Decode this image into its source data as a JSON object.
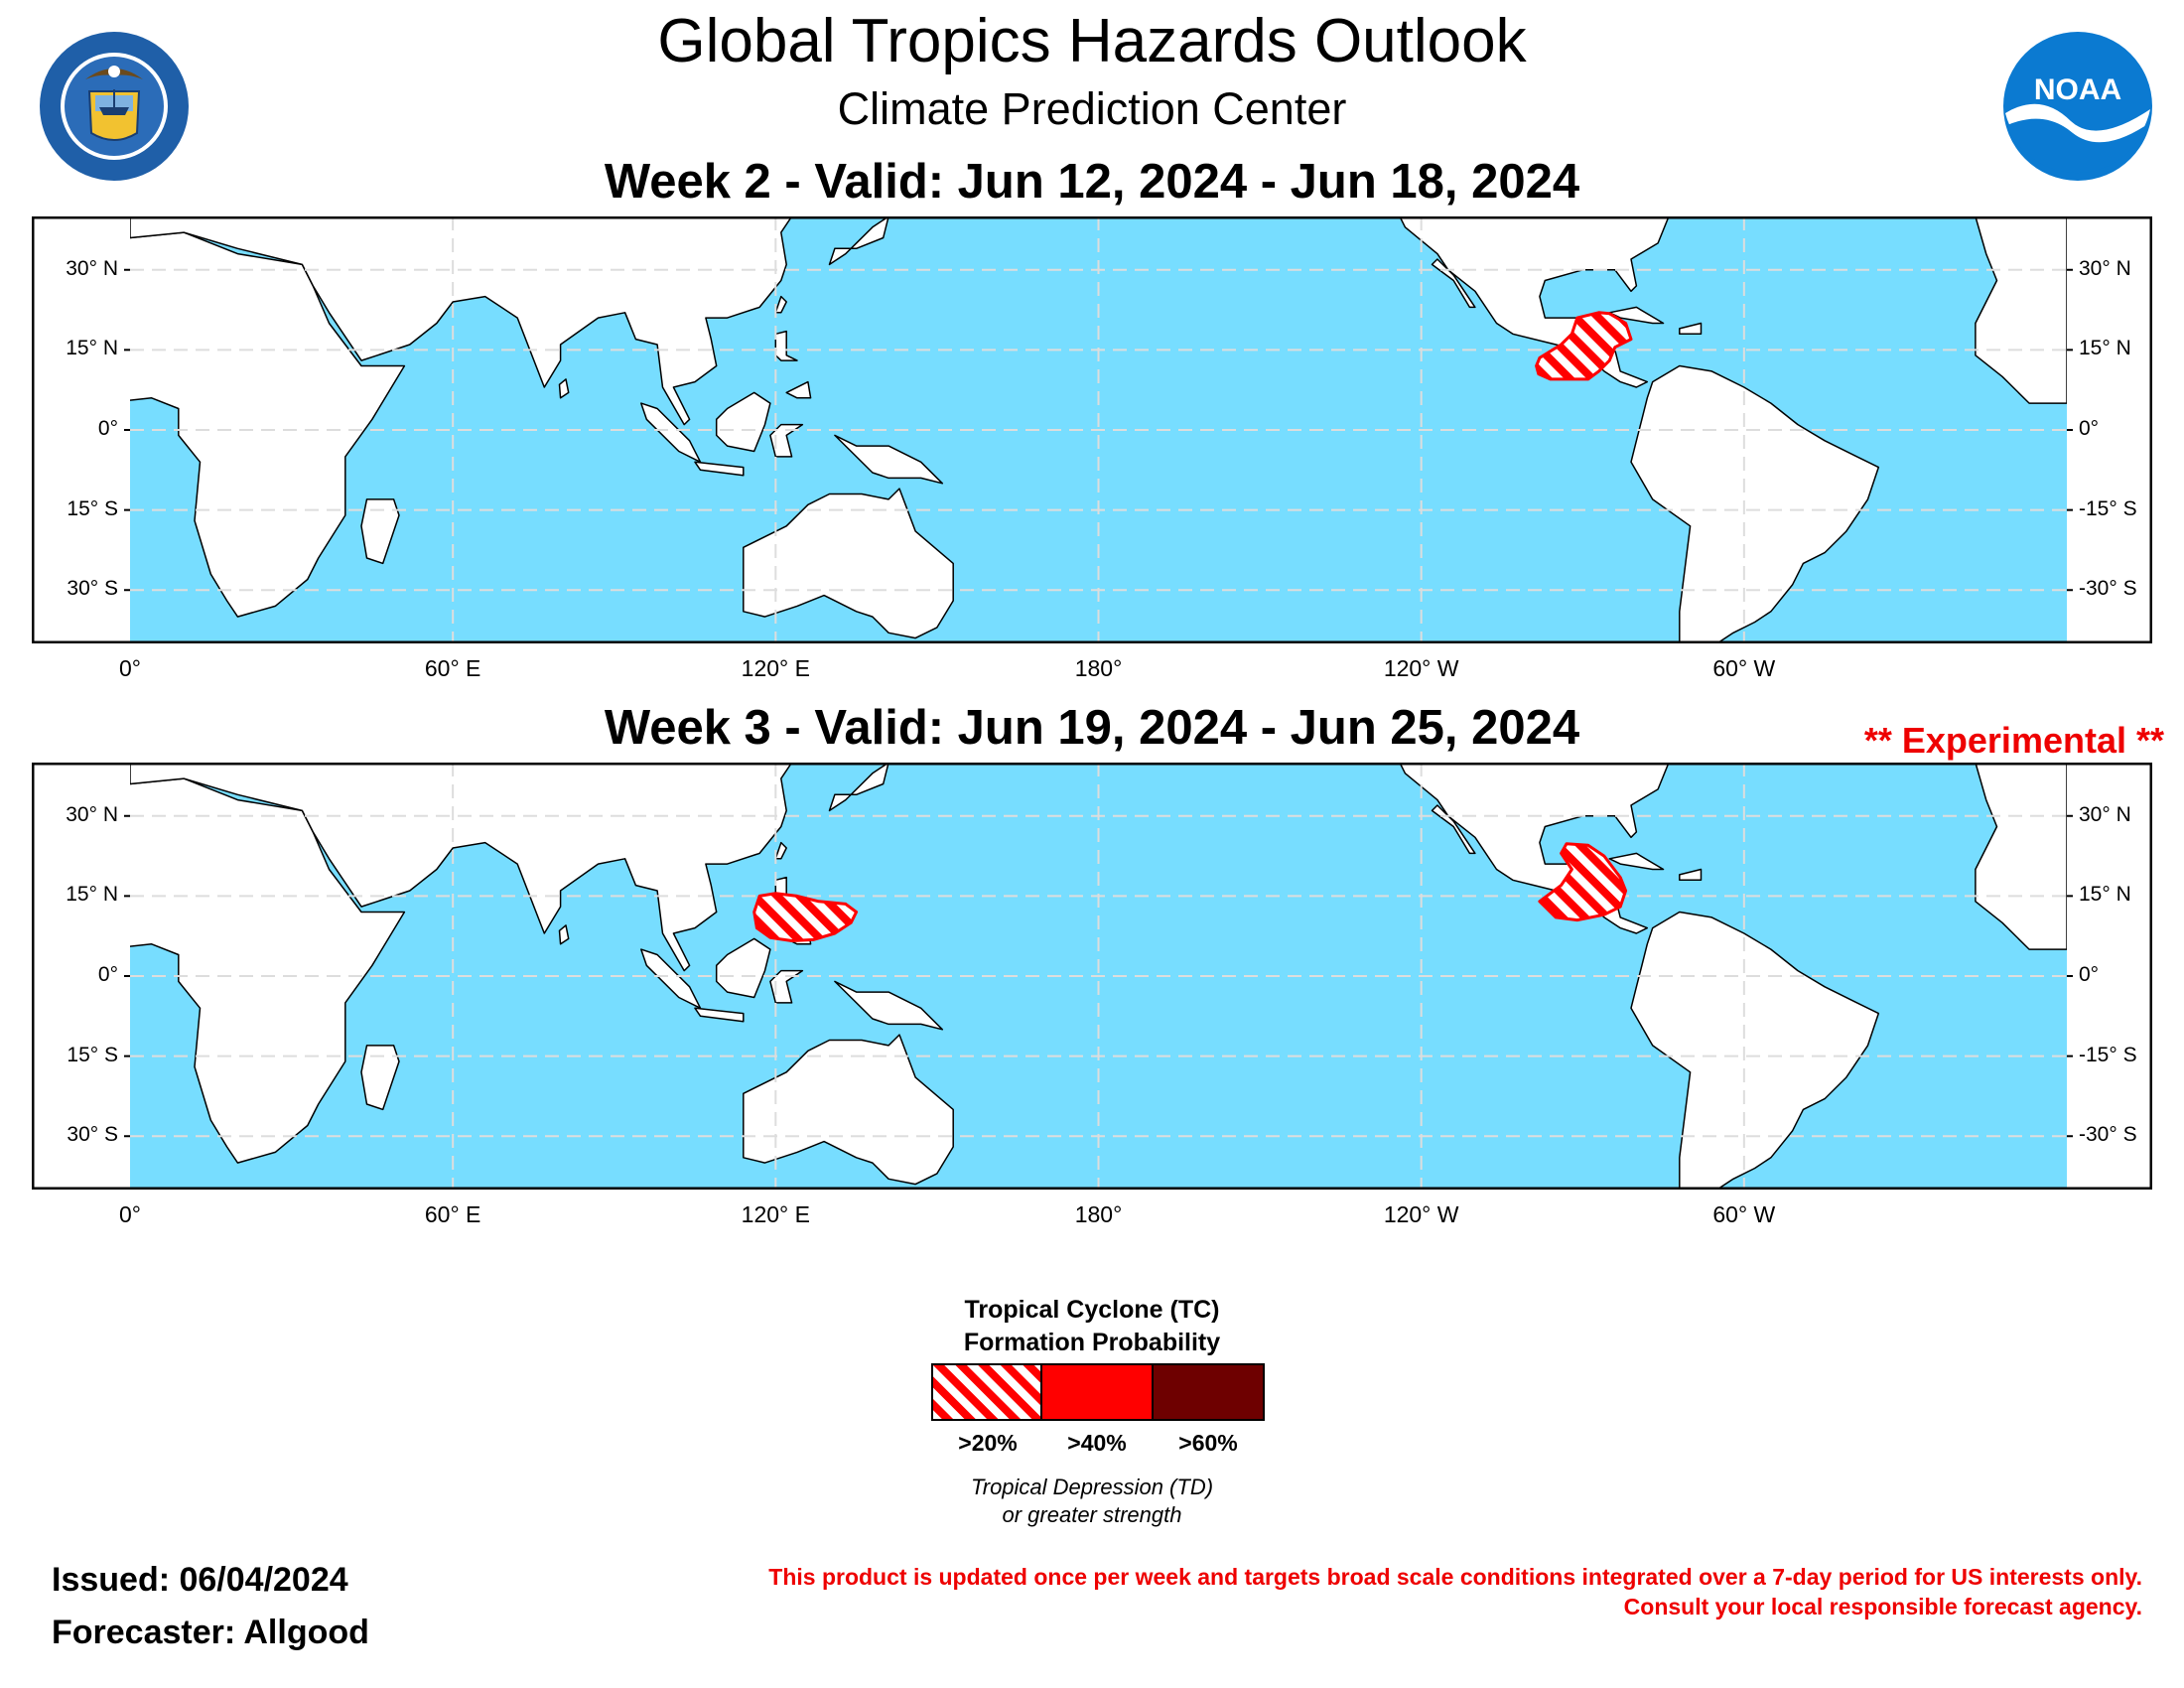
{
  "header": {
    "title": "Global Tropics Hazards Outlook",
    "subtitle": "Climate Prediction Center",
    "seal_text": "DEPARTMENT OF COMMERCE · UNITED STATES OF AMERICA",
    "logo_text": "NOAA"
  },
  "week2": {
    "title": "Week 2 - Valid: Jun 12, 2024 - Jun 18, 2024"
  },
  "week3": {
    "title": "Week 3 - Valid: Jun 19, 2024 - Jun 25, 2024",
    "experimental": "** Experimental **"
  },
  "map": {
    "projection": "equirectangular",
    "lon_range": [
      0,
      360
    ],
    "lat_range": [
      -40,
      40
    ],
    "lon_ticks": [
      "0°",
      "60° E",
      "120° E",
      "180°",
      "120° W",
      "60° W"
    ],
    "lat_ticks_left": [
      "30° N",
      "15° N",
      "0°",
      "15° S",
      "30° S"
    ],
    "lat_ticks_right": [
      "30° N",
      "15° N",
      "0°",
      "-15° S",
      "-30° S"
    ],
    "ocean_color": "#77ddff",
    "land_color": "#ffffff"
  },
  "hazards": {
    "week2": [
      {
        "region": "Eastern Pacific / Central America / Gulf of Mexico",
        "category": ">20%"
      }
    ],
    "week3": [
      {
        "region": "Philippines / Western Pacific",
        "category": ">20%"
      },
      {
        "region": "Eastern Pacific / Central America / Gulf of Mexico",
        "category": ">20%"
      }
    ]
  },
  "legend": {
    "title_line1": "Tropical Cyclone (TC)",
    "title_line2": "Formation Probability",
    "items": [
      {
        "label": ">20%",
        "color": "#ff0000",
        "pattern": "hatched"
      },
      {
        "label": ">40%",
        "color": "#ff0000",
        "pattern": "solid"
      },
      {
        "label": ">60%",
        "color": "#6e0000",
        "pattern": "solid"
      }
    ],
    "note_line1": "Tropical Depression (TD)",
    "note_line2": "or greater strength"
  },
  "footer": {
    "issued": "Issued: 06/04/2024",
    "forecaster": "Forecaster: Allgood",
    "disclaimer_line1": "This product is updated once per week and targets broad scale conditions integrated over a 7-day period for US interests only.",
    "disclaimer_line2": "Consult your local responsible forecast agency."
  }
}
